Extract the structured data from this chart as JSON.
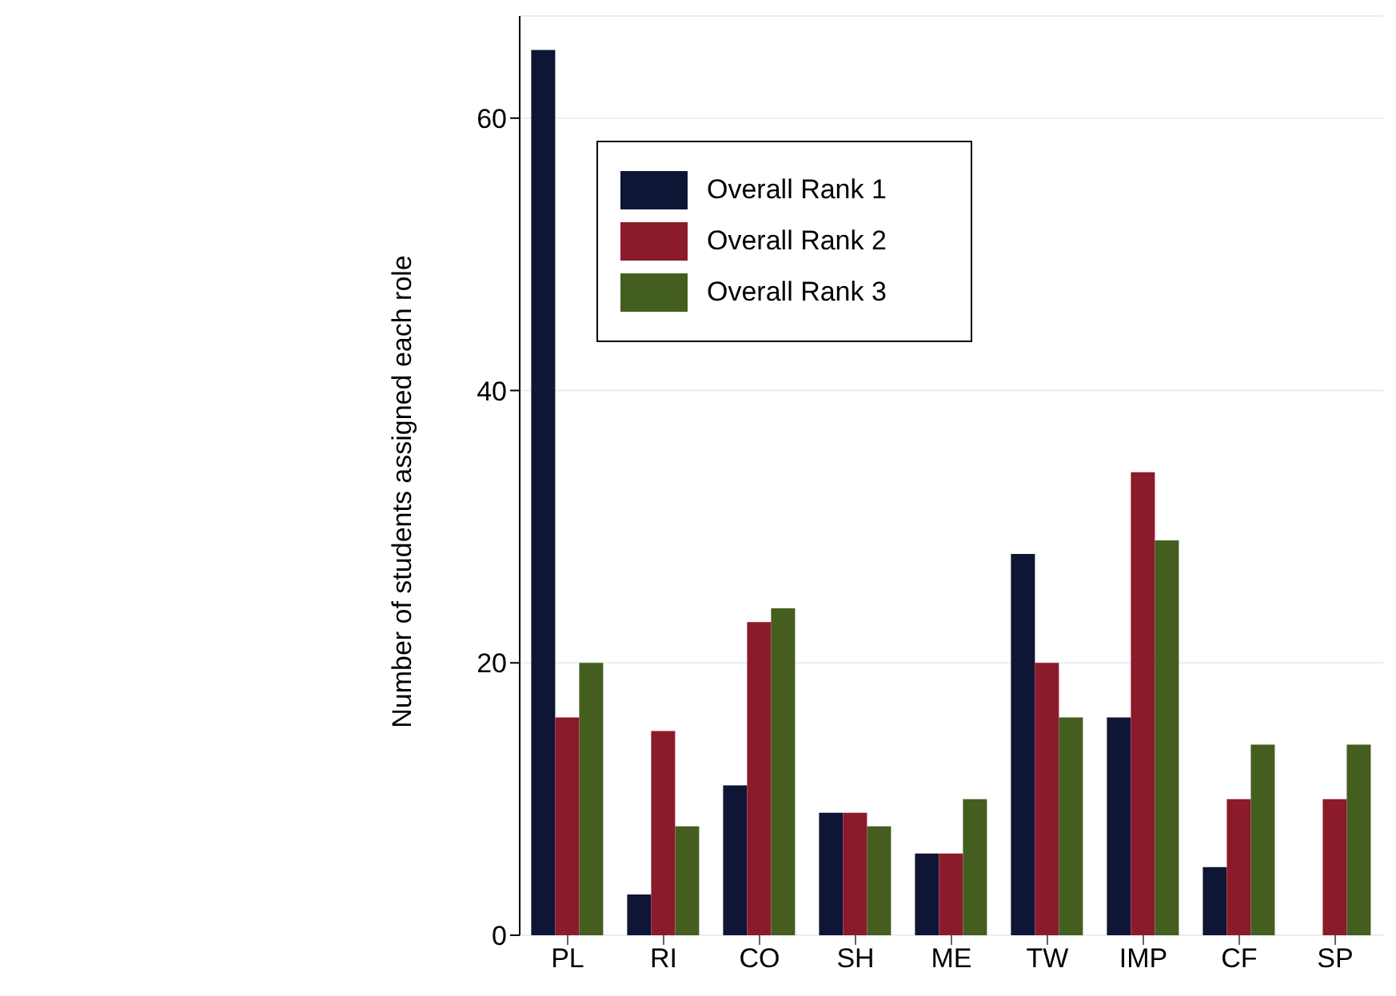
{
  "chart_data": {
    "type": "bar",
    "ylabel": "Number of students assigned each role",
    "categories": [
      "PL",
      "RI",
      "CO",
      "SH",
      "ME",
      "TW",
      "IMP",
      "CF",
      "SP"
    ],
    "series": [
      {
        "name": "Overall Rank 1",
        "color": "#0f1535",
        "values": [
          65,
          3,
          11,
          9,
          6,
          28,
          16,
          5,
          0
        ]
      },
      {
        "name": "Overall Rank 2",
        "color": "#8b1a2b",
        "values": [
          16,
          15,
          23,
          9,
          6,
          20,
          34,
          10,
          10
        ]
      },
      {
        "name": "Overall Rank 3",
        "color": "#445e1f",
        "values": [
          20,
          8,
          24,
          8,
          10,
          16,
          29,
          14,
          14
        ]
      }
    ],
    "ylim": [
      0,
      67.5
    ],
    "yticks": [
      0,
      20,
      40,
      60
    ],
    "grid": "y",
    "legend": "top"
  }
}
